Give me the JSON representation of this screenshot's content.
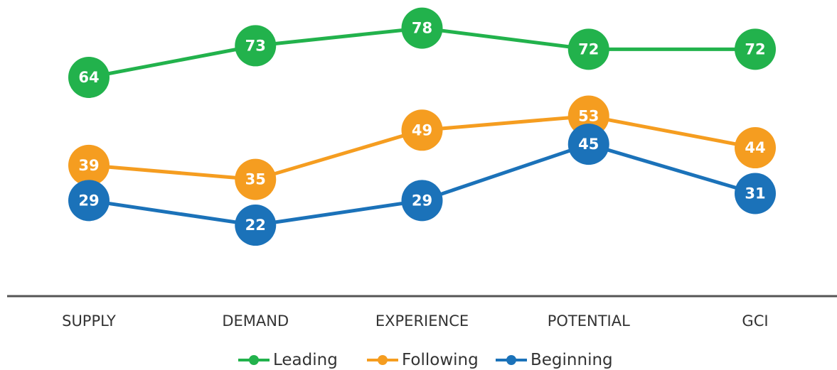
{
  "chart_data": {
    "type": "line",
    "categories": [
      "SUPPLY",
      "DEMAND",
      "EXPERIENCE",
      "POTENTIAL",
      "GCI"
    ],
    "series": [
      {
        "name": "Leading",
        "color": "#22b24c",
        "values": [
          64,
          73,
          78,
          72,
          72
        ]
      },
      {
        "name": "Following",
        "color": "#f59d20",
        "values": [
          39,
          35,
          49,
          53,
          44
        ]
      },
      {
        "name": "Beginning",
        "color": "#1b72b9",
        "values": [
          29,
          22,
          29,
          45,
          31
        ]
      }
    ],
    "ylim": [
      0,
      86
    ]
  }
}
